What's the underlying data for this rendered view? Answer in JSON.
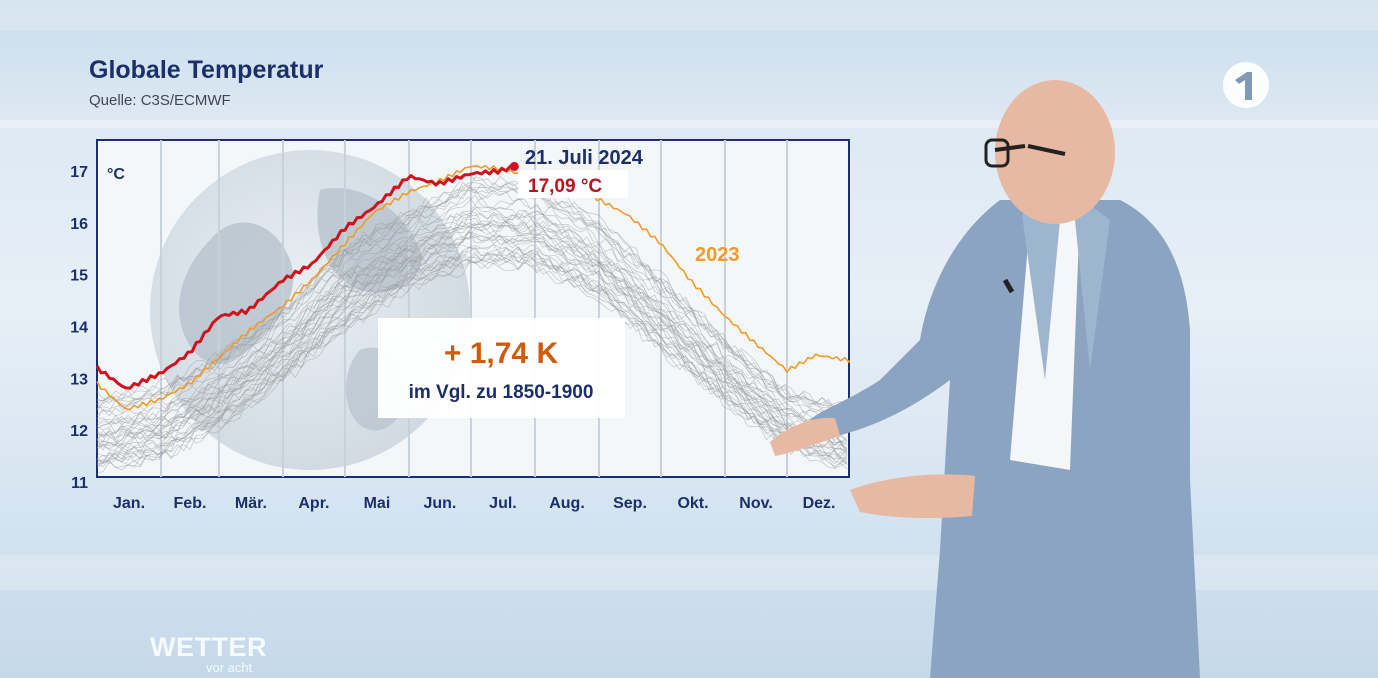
{
  "header": {
    "title": "Globale Temperatur",
    "source": "Quelle: C3S/ECMWF"
  },
  "branding": {
    "show_name": "WETTER",
    "show_sub": "vor acht",
    "channel_logo": "ard-one-logo"
  },
  "callout": {
    "date": "21. Juli 2024",
    "value": "17,09 °C"
  },
  "anomaly_box": {
    "value": "+ 1,74 K",
    "caption": "im Vgl. zu 1850-1900"
  },
  "colors": {
    "current_year": "#d0121e",
    "year_2023": "#f39a27",
    "history": "#9a9a9a",
    "frame": "#1b2f6b",
    "anomaly": "#d05a10"
  },
  "chart_data": {
    "type": "line",
    "title": "Globale Temperatur",
    "ylabel": "°C",
    "ylim": [
      11,
      17.6
    ],
    "yticks": [
      11,
      12,
      13,
      14,
      15,
      16,
      17
    ],
    "categories": [
      "Jan.",
      "Feb.",
      "Mär.",
      "Apr.",
      "Mai",
      "Jun.",
      "Jul.",
      "Aug.",
      "Sep.",
      "Okt.",
      "Nov.",
      "Dez."
    ],
    "grid": "vertical month separators",
    "series": [
      {
        "name": "2024",
        "color": "#d0121e",
        "x": [
          1,
          15,
          32,
          46,
          60,
          74,
          91,
          105,
          121,
          135,
          152,
          166,
          182,
          196,
          203
        ],
        "values": [
          13.2,
          12.8,
          13.1,
          13.5,
          14.2,
          14.3,
          14.9,
          15.2,
          15.9,
          16.3,
          16.9,
          16.75,
          16.95,
          17.0,
          17.09
        ]
      },
      {
        "name": "2023",
        "color": "#f39a27",
        "x": [
          1,
          15,
          32,
          46,
          60,
          74,
          91,
          105,
          121,
          135,
          152,
          166,
          182,
          196,
          210,
          230,
          244,
          258,
          274,
          288,
          305,
          319,
          335,
          349,
          365
        ],
        "values": [
          12.9,
          12.4,
          12.6,
          12.9,
          13.4,
          13.9,
          14.4,
          14.9,
          15.6,
          16.2,
          16.6,
          16.8,
          17.1,
          17.05,
          16.9,
          16.75,
          16.45,
          16.15,
          15.6,
          14.9,
          14.2,
          13.7,
          13.15,
          13.45,
          13.35
        ]
      }
    ],
    "history_band": {
      "name": "",
      "color": "#9a9a9a",
      "x": [
        1,
        32,
        60,
        91,
        121,
        152,
        182,
        213,
        244,
        274,
        305,
        335,
        365
      ],
      "lower": [
        11.2,
        11.4,
        12.0,
        12.9,
        13.9,
        14.7,
        15.1,
        15.1,
        14.5,
        13.5,
        12.5,
        11.6,
        11.2
      ],
      "upper": [
        12.7,
        12.9,
        13.5,
        14.4,
        15.6,
        16.3,
        16.9,
        16.8,
        16.1,
        15.0,
        13.8,
        12.8,
        12.5
      ]
    },
    "annotations": [
      "21. Juli 2024",
      "17,09 °C",
      "2023",
      "+ 1,74 K",
      "im Vgl. zu 1850-1900"
    ]
  }
}
